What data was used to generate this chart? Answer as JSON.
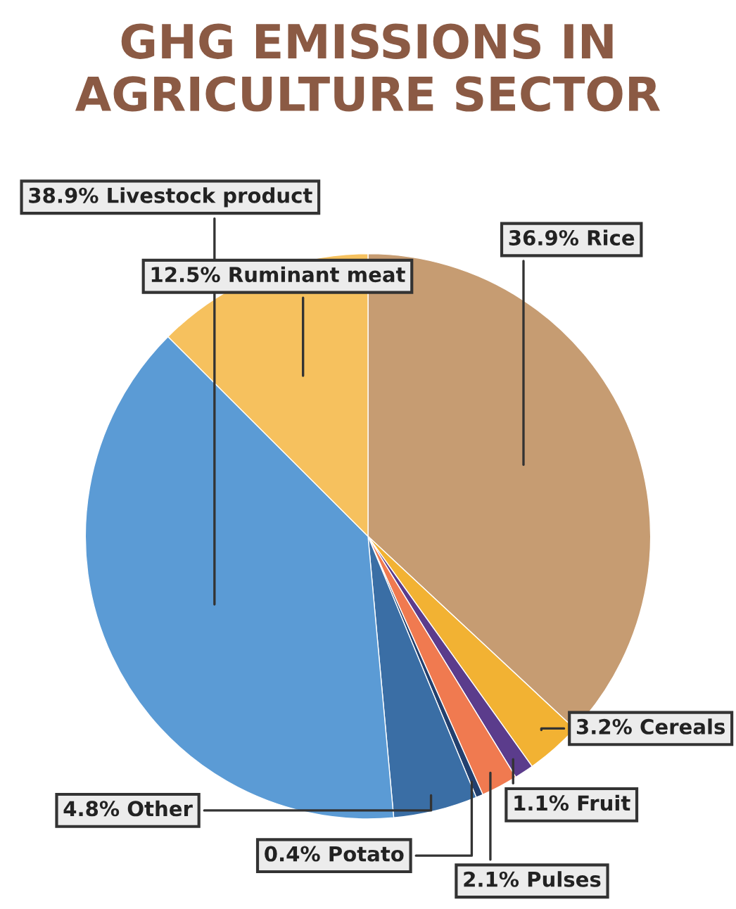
{
  "chart_data": {
    "type": "pie",
    "title": "GHG EMISSIONS IN AGRICULTURE SECTOR",
    "categories": [
      "Rice",
      "Cereals",
      "Fruit",
      "Pulses",
      "Potato",
      "Other",
      "Livestock product",
      "Ruminant meat"
    ],
    "values": [
      36.9,
      3.2,
      1.1,
      2.1,
      0.4,
      4.8,
      38.9,
      12.5
    ],
    "colors": [
      "#c69c72",
      "#f2b233",
      "#5b3c8c",
      "#f07a50",
      "#23406e",
      "#3a6ea5",
      "#5b9bd5",
      "#f6c15e"
    ],
    "value_labels": [
      "36.9%",
      "3.2%",
      "1.1%",
      "2.1%",
      "0.4%",
      "4.8%",
      "38.9%",
      "12.5%"
    ],
    "legend": false
  }
}
